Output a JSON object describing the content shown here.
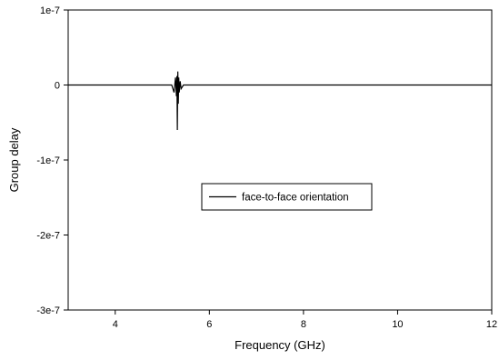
{
  "chart_data": {
    "type": "line",
    "xlabel": "Frequency (GHz)",
    "ylabel": "Group delay",
    "xlim": [
      3,
      12
    ],
    "ylim": [
      -3e-07,
      1e-07
    ],
    "x_ticks": [
      4,
      6,
      8,
      10,
      12
    ],
    "x_tick_labels": [
      "4",
      "6",
      "8",
      "10",
      "12"
    ],
    "y_ticks": [
      1e-07,
      0,
      -1e-07,
      -2e-07,
      -3e-07
    ],
    "y_tick_labels": [
      "1e-7",
      "0",
      "-1e-7",
      "-2e-7",
      "-3e-7"
    ],
    "grid": false,
    "legend_position": "center",
    "series": [
      {
        "name": "face-to-face orientation",
        "color": "#000000",
        "x": [
          3.0,
          3.5,
          4.0,
          4.5,
          5.0,
          5.2,
          5.25,
          5.28,
          5.3,
          5.31,
          5.32,
          5.33,
          5.34,
          5.35,
          5.36,
          5.38,
          5.4,
          5.45,
          5.5,
          6.0,
          6.5,
          7.0,
          7.5,
          8.0,
          8.5,
          8.6,
          8.7,
          9.0,
          9.5,
          10.0,
          10.5,
          11.0,
          11.5,
          12.0
        ],
        "y": [
          0,
          0,
          0,
          0,
          0,
          0,
          -1e-08,
          1e-08,
          -1.5e-08,
          1.2e-08,
          -6e-08,
          1.8e-08,
          -2.5e-08,
          1e-08,
          -1e-08,
          5e-09,
          -5e-09,
          0,
          0,
          0,
          0,
          0,
          0,
          0,
          0,
          0,
          0,
          0,
          0,
          0,
          0,
          0,
          0,
          0
        ]
      }
    ]
  }
}
